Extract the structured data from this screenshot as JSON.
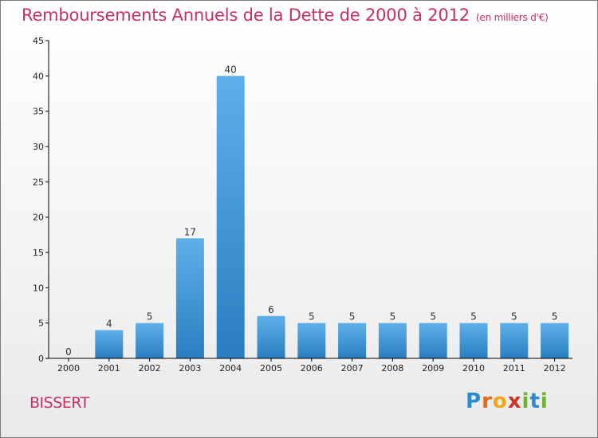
{
  "title": "Remboursements Annuels de la Dette de 2000 à 2012",
  "unit": "(en milliers d'€)",
  "commune": "BISSERT",
  "logo": {
    "p": "P",
    "r": "r",
    "o": "o",
    "x": "x",
    "i": "i",
    "t": "t",
    "i2": "i"
  },
  "colors": {
    "title": "#c8305e",
    "bar_light": "#5eb0ea",
    "bar_dark": "#2a7ec0",
    "axis": "#000000"
  },
  "chart_data": {
    "type": "bar",
    "title": "Remboursements Annuels de la Dette de 2000 à 2012",
    "ylabel": "en milliers d'€",
    "xlabel": "",
    "categories": [
      "2000",
      "2001",
      "2002",
      "2003",
      "2004",
      "2005",
      "2006",
      "2007",
      "2008",
      "2009",
      "2010",
      "2011",
      "2012"
    ],
    "values": [
      0,
      4,
      5,
      17,
      40,
      6,
      5,
      5,
      5,
      5,
      5,
      5,
      5
    ],
    "ylim": [
      0,
      45
    ],
    "yticks": [
      0,
      5,
      10,
      15,
      20,
      25,
      30,
      35,
      40,
      45
    ],
    "grid": false
  }
}
